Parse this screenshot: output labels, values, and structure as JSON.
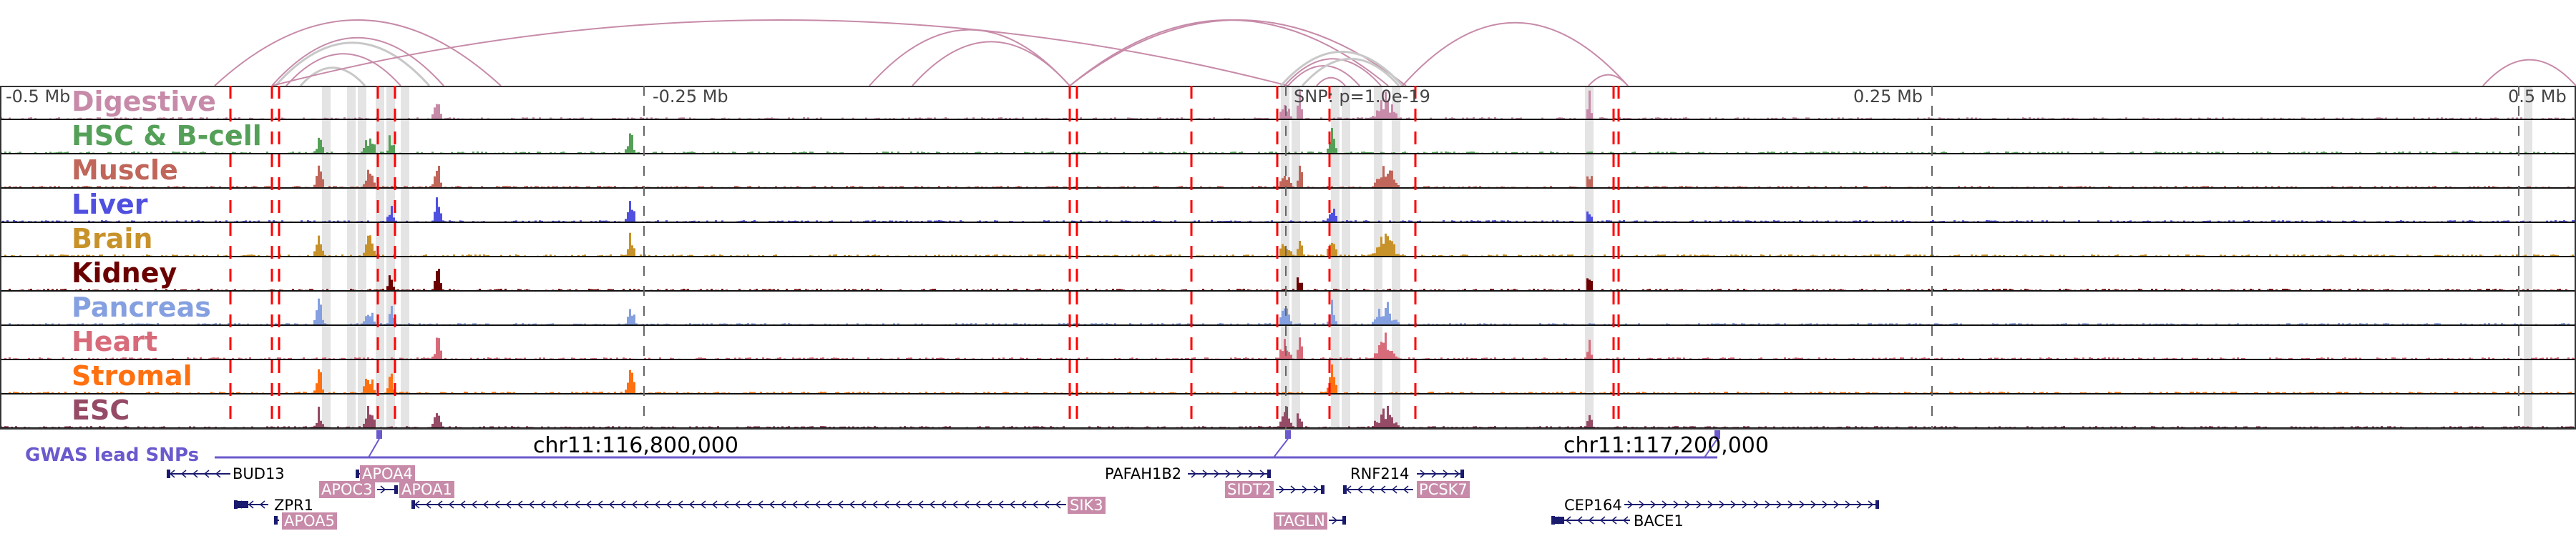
{
  "tracks": [
    {
      "name": "Digestive",
      "color": "#c78ba9"
    },
    {
      "name": "HSC & B-cell",
      "color": "#55a058"
    },
    {
      "name": "Muscle",
      "color": "#c0665a"
    },
    {
      "name": "Liver",
      "color": "#5050e0"
    },
    {
      "name": "Brain",
      "color": "#c8922a"
    },
    {
      "name": "Kidney",
      "color": "#6b0000"
    },
    {
      "name": "Pancreas",
      "color": "#85a0e0"
    },
    {
      "name": "Heart",
      "color": "#d86b7a"
    },
    {
      "name": "Stromal",
      "color": "#ff7010"
    },
    {
      "name": "ESC",
      "color": "#954a66"
    }
  ],
  "axis": {
    "left": "-0.5 Mb",
    "left_mid": "-0.25 Mb",
    "right_mid": "0.25 Mb",
    "right": "0.5 Mb",
    "snp": "SNP: p=1.0e-19"
  },
  "coords": {
    "c1": "chr11:116,800,000",
    "c2": "chr11:117,200,000"
  },
  "gwas_label": "GWAS lead SNPs",
  "genes": [
    "BUD13",
    "APOA4",
    "APOC3",
    "APOA1",
    "ZPR1",
    "APOA5",
    "SIK3",
    "PAFAH1B2",
    "SIDT2",
    "RNF214",
    "PCSK7",
    "TAGLN",
    "CEP164",
    "BACE1"
  ],
  "colors": {
    "arc": "#c78ba9",
    "arc_gray": "#c8c8c8",
    "highlight": "#ff0000",
    "gwas": "#6a5acd",
    "gene": "#1a1a6e"
  }
}
